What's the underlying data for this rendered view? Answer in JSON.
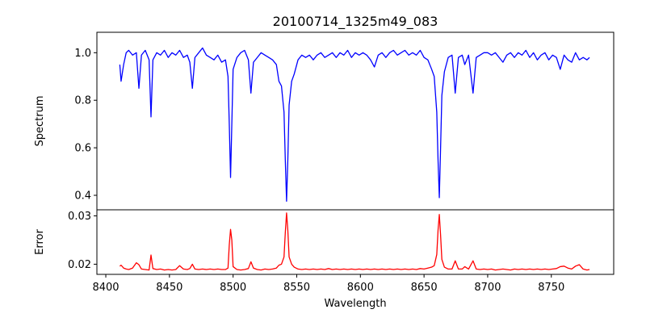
{
  "chart_data": {
    "type": "line",
    "title": "20100714_1325m49_083",
    "xlabel": "Wavelength",
    "xlim": [
      8393,
      8799
    ],
    "xticks": [
      8400,
      8450,
      8500,
      8550,
      8600,
      8650,
      8700,
      8750
    ],
    "panels": [
      {
        "name": "spectrum",
        "ylabel": "Spectrum",
        "ylim": [
          0.339,
          1.086
        ],
        "yticks": [
          0.4,
          0.6,
          0.8,
          1.0
        ],
        "ytick_labels": [
          "0.4",
          "0.6",
          "0.8",
          "1.0"
        ],
        "color": "#0000ff",
        "series_key": "spectrum"
      },
      {
        "name": "error",
        "ylabel": "Error",
        "ylim": [
          0.0179,
          0.03126
        ],
        "yticks": [
          0.02,
          0.03
        ],
        "ytick_labels": [
          "0.02",
          "0.03"
        ],
        "color": "#ff0000",
        "series_key": "error"
      }
    ],
    "x": [
      8411,
      8412,
      8414,
      8416,
      8418,
      8421,
      8424,
      8426,
      8428,
      8431,
      8434,
      8435.5,
      8437,
      8440,
      8443,
      8446,
      8449,
      8452,
      8455,
      8458,
      8461,
      8464,
      8466,
      8468,
      8470,
      8473,
      8476,
      8479,
      8482,
      8485,
      8488,
      8491,
      8494,
      8496,
      8497,
      8498,
      8499,
      8500,
      8503,
      8506,
      8509,
      8512,
      8514,
      8516,
      8519,
      8522,
      8525,
      8528,
      8531,
      8534,
      8536,
      8538,
      8540,
      8541,
      8542,
      8543,
      8544,
      8546,
      8548,
      8551,
      8554,
      8557,
      8560,
      8563,
      8566,
      8569,
      8572,
      8575,
      8578,
      8581,
      8584,
      8587,
      8590,
      8593,
      8596,
      8599,
      8602,
      8605,
      8608,
      8611,
      8614,
      8617,
      8620,
      8623,
      8626,
      8629,
      8632,
      8635,
      8638,
      8641,
      8644,
      8647,
      8650,
      8653,
      8656,
      8658,
      8660,
      8661,
      8662,
      8663,
      8664,
      8666,
      8669,
      8672,
      8674.5,
      8677,
      8680,
      8682,
      8685,
      8688.5,
      8691,
      8694,
      8697,
      8700,
      8703,
      8706,
      8709,
      8712,
      8715,
      8718,
      8721,
      8724,
      8727,
      8730,
      8733,
      8736,
      8739,
      8742,
      8745,
      8748,
      8751,
      8754,
      8757,
      8760,
      8763,
      8766,
      8769,
      8772,
      8775,
      8778,
      8780
    ],
    "spectrum": [
      0.95,
      0.88,
      0.95,
      1.0,
      1.01,
      0.99,
      1.0,
      0.85,
      0.99,
      1.01,
      0.97,
      0.73,
      0.97,
      1.0,
      0.99,
      1.01,
      0.98,
      1.0,
      0.99,
      1.01,
      0.98,
      0.99,
      0.96,
      0.85,
      0.98,
      1.0,
      1.02,
      0.99,
      0.98,
      0.97,
      0.99,
      0.96,
      0.97,
      0.9,
      0.7,
      0.475,
      0.7,
      0.93,
      0.98,
      1.0,
      1.01,
      0.97,
      0.83,
      0.96,
      0.98,
      1.0,
      0.99,
      0.98,
      0.97,
      0.95,
      0.88,
      0.86,
      0.75,
      0.55,
      0.375,
      0.55,
      0.78,
      0.88,
      0.91,
      0.97,
      0.99,
      0.98,
      0.99,
      0.97,
      0.99,
      1.0,
      0.98,
      0.99,
      1.0,
      0.98,
      1.0,
      0.99,
      1.01,
      0.98,
      1.0,
      0.99,
      1.0,
      0.99,
      0.97,
      0.94,
      0.99,
      1.0,
      0.98,
      1.0,
      1.01,
      0.99,
      1.0,
      1.01,
      0.99,
      1.0,
      0.99,
      1.01,
      0.98,
      0.97,
      0.93,
      0.9,
      0.75,
      0.55,
      0.39,
      0.6,
      0.82,
      0.92,
      0.98,
      0.99,
      0.83,
      0.98,
      0.99,
      0.95,
      0.99,
      0.83,
      0.98,
      0.99,
      1.0,
      1.0,
      0.99,
      1.0,
      0.98,
      0.96,
      0.99,
      1.0,
      0.98,
      1.0,
      0.99,
      1.01,
      0.98,
      1.0,
      0.97,
      0.99,
      1.0,
      0.97,
      0.99,
      0.98,
      0.93,
      0.99,
      0.97,
      0.96,
      1.0,
      0.97,
      0.98,
      0.97,
      0.98
    ],
    "error": [
      0.0196,
      0.0198,
      0.0192,
      0.019,
      0.0189,
      0.0192,
      0.0203,
      0.0199,
      0.019,
      0.0189,
      0.0188,
      0.0219,
      0.0191,
      0.0189,
      0.019,
      0.0188,
      0.0189,
      0.0188,
      0.0189,
      0.0197,
      0.019,
      0.0189,
      0.0191,
      0.02,
      0.019,
      0.0189,
      0.019,
      0.0189,
      0.019,
      0.0189,
      0.019,
      0.0189,
      0.0189,
      0.0192,
      0.024,
      0.0272,
      0.025,
      0.0195,
      0.0189,
      0.0188,
      0.0189,
      0.0191,
      0.0205,
      0.0192,
      0.0189,
      0.0188,
      0.019,
      0.0189,
      0.019,
      0.0192,
      0.0198,
      0.02,
      0.0215,
      0.0265,
      0.0306,
      0.027,
      0.0215,
      0.02,
      0.0194,
      0.019,
      0.0189,
      0.019,
      0.0189,
      0.019,
      0.0189,
      0.019,
      0.0189,
      0.0191,
      0.0189,
      0.019,
      0.0189,
      0.019,
      0.0189,
      0.019,
      0.0189,
      0.019,
      0.0189,
      0.019,
      0.0189,
      0.019,
      0.0189,
      0.019,
      0.0189,
      0.019,
      0.0189,
      0.019,
      0.0189,
      0.019,
      0.0189,
      0.019,
      0.0189,
      0.0191,
      0.019,
      0.0192,
      0.0194,
      0.0197,
      0.022,
      0.027,
      0.0303,
      0.026,
      0.021,
      0.0194,
      0.019,
      0.019,
      0.0207,
      0.019,
      0.019,
      0.0195,
      0.019,
      0.0207,
      0.019,
      0.0189,
      0.019,
      0.0189,
      0.019,
      0.0188,
      0.0189,
      0.019,
      0.0189,
      0.0188,
      0.019,
      0.0189,
      0.019,
      0.0189,
      0.019,
      0.0189,
      0.019,
      0.0189,
      0.019,
      0.0189,
      0.019,
      0.0191,
      0.0195,
      0.0196,
      0.0192,
      0.019,
      0.0196,
      0.0199,
      0.019,
      0.0188,
      0.0189
    ]
  }
}
